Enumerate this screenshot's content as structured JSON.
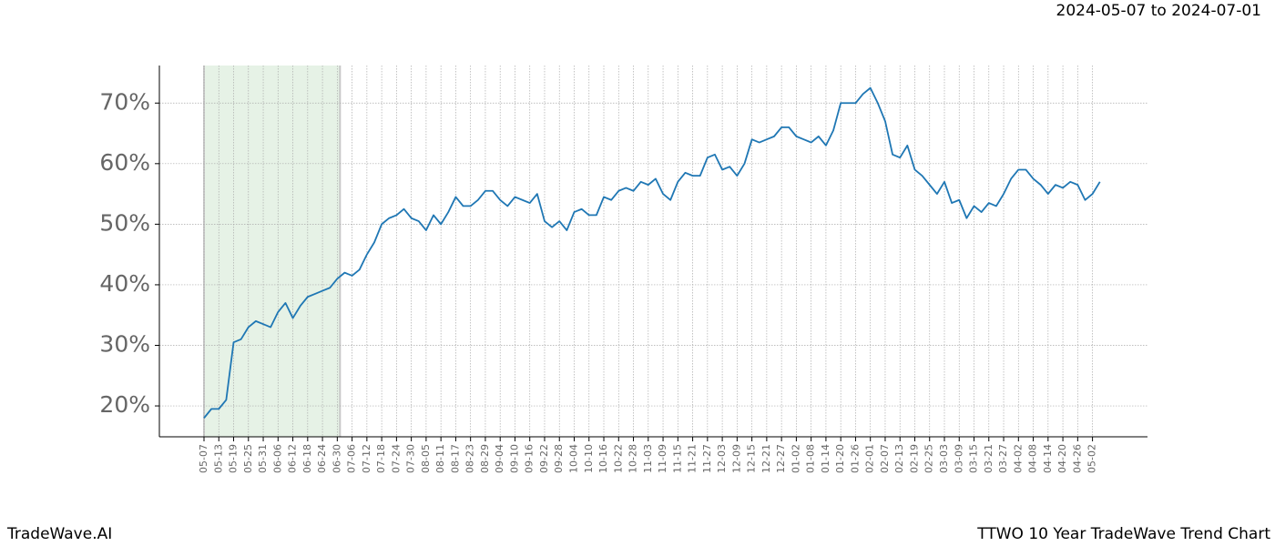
{
  "brand": "TradeWave.AI",
  "chart_data": {
    "type": "line",
    "title": "TTWO 10 Year TradeWave Trend Chart",
    "subtitle": "2024-05-07 to 2024-07-01",
    "categories": [
      "05-07",
      null,
      "05-13",
      null,
      "05-19",
      null,
      "05-25",
      null,
      "05-31",
      null,
      "06-06",
      null,
      "06-12",
      null,
      "06-18",
      null,
      "06-24",
      null,
      "06-30",
      null,
      "07-06",
      null,
      "07-12",
      null,
      "07-18",
      null,
      "07-24",
      null,
      "07-30",
      null,
      "08-05",
      null,
      "08-11",
      null,
      "08-17",
      null,
      "08-23",
      null,
      "08-29",
      null,
      "09-04",
      null,
      "09-10",
      null,
      "09-16",
      null,
      "09-22",
      null,
      "09-28",
      null,
      "10-04",
      null,
      "10-10",
      null,
      "10-16",
      null,
      "10-22",
      null,
      "10-28",
      null,
      "11-03",
      null,
      "11-09",
      null,
      "11-15",
      null,
      "11-21",
      null,
      "11-27",
      null,
      "12-03",
      null,
      "12-09",
      null,
      "12-15",
      null,
      "12-21",
      null,
      "12-27",
      null,
      "01-02",
      null,
      "01-08",
      null,
      "01-14",
      null,
      "01-20",
      null,
      "01-26",
      null,
      "02-01",
      null,
      "02-07",
      null,
      "02-13",
      null,
      "02-19",
      null,
      "02-25",
      null,
      "03-03",
      null,
      "03-09",
      null,
      "03-15",
      null,
      "03-21",
      null,
      "03-27",
      null,
      "04-02",
      null,
      "04-08",
      null,
      "04-14",
      null,
      "04-20",
      null,
      "04-26",
      null,
      "05-02",
      null
    ],
    "series": [
      {
        "color": "#1f77b4",
        "values": [
          18,
          19.5,
          19.5,
          21,
          30.5,
          31,
          33,
          34,
          33.5,
          33,
          35.5,
          37,
          34.5,
          36.5,
          38,
          38.5,
          39,
          39.5,
          41,
          42,
          41.5,
          42.5,
          45,
          47,
          50,
          51,
          51.5,
          52.5,
          51,
          50.5,
          49,
          51.5,
          50,
          52,
          54.5,
          53,
          53,
          54,
          55.5,
          55.5,
          54,
          53,
          54.5,
          54,
          53.5,
          55,
          50.5,
          49.5,
          50.5,
          49,
          52,
          52.5,
          51.5,
          51.5,
          54.5,
          54,
          55.5,
          56,
          55.5,
          57,
          56.5,
          57.5,
          55,
          54,
          57,
          58.5,
          58,
          58,
          61,
          61.5,
          59,
          59.5,
          58,
          60,
          64,
          63.5,
          64,
          64.5,
          66,
          66,
          64.5,
          64,
          63.5,
          64.5,
          63,
          65.5,
          70,
          70,
          70,
          71.5,
          72.5,
          70,
          67,
          61.5,
          61,
          63,
          59,
          58,
          56.5,
          55,
          57,
          53.5,
          54,
          51,
          53,
          52,
          53.5,
          53,
          55,
          57.5,
          59,
          59,
          57.5,
          56.5,
          55,
          56.5,
          56,
          57,
          56.5,
          54,
          55,
          57
        ]
      }
    ],
    "highlight": {
      "from": "05-07",
      "to": "06-30",
      "color": "#e6f2e6"
    },
    "ylim": [
      14.9,
      76.2
    ],
    "yticks": [
      {
        "value": 20,
        "label": "20%"
      },
      {
        "value": 30,
        "label": "30%"
      },
      {
        "value": 40,
        "label": "40%"
      },
      {
        "value": 50,
        "label": "50%"
      },
      {
        "value": 60,
        "label": "60%"
      },
      {
        "value": 70,
        "label": "70%"
      }
    ],
    "grid": true
  }
}
